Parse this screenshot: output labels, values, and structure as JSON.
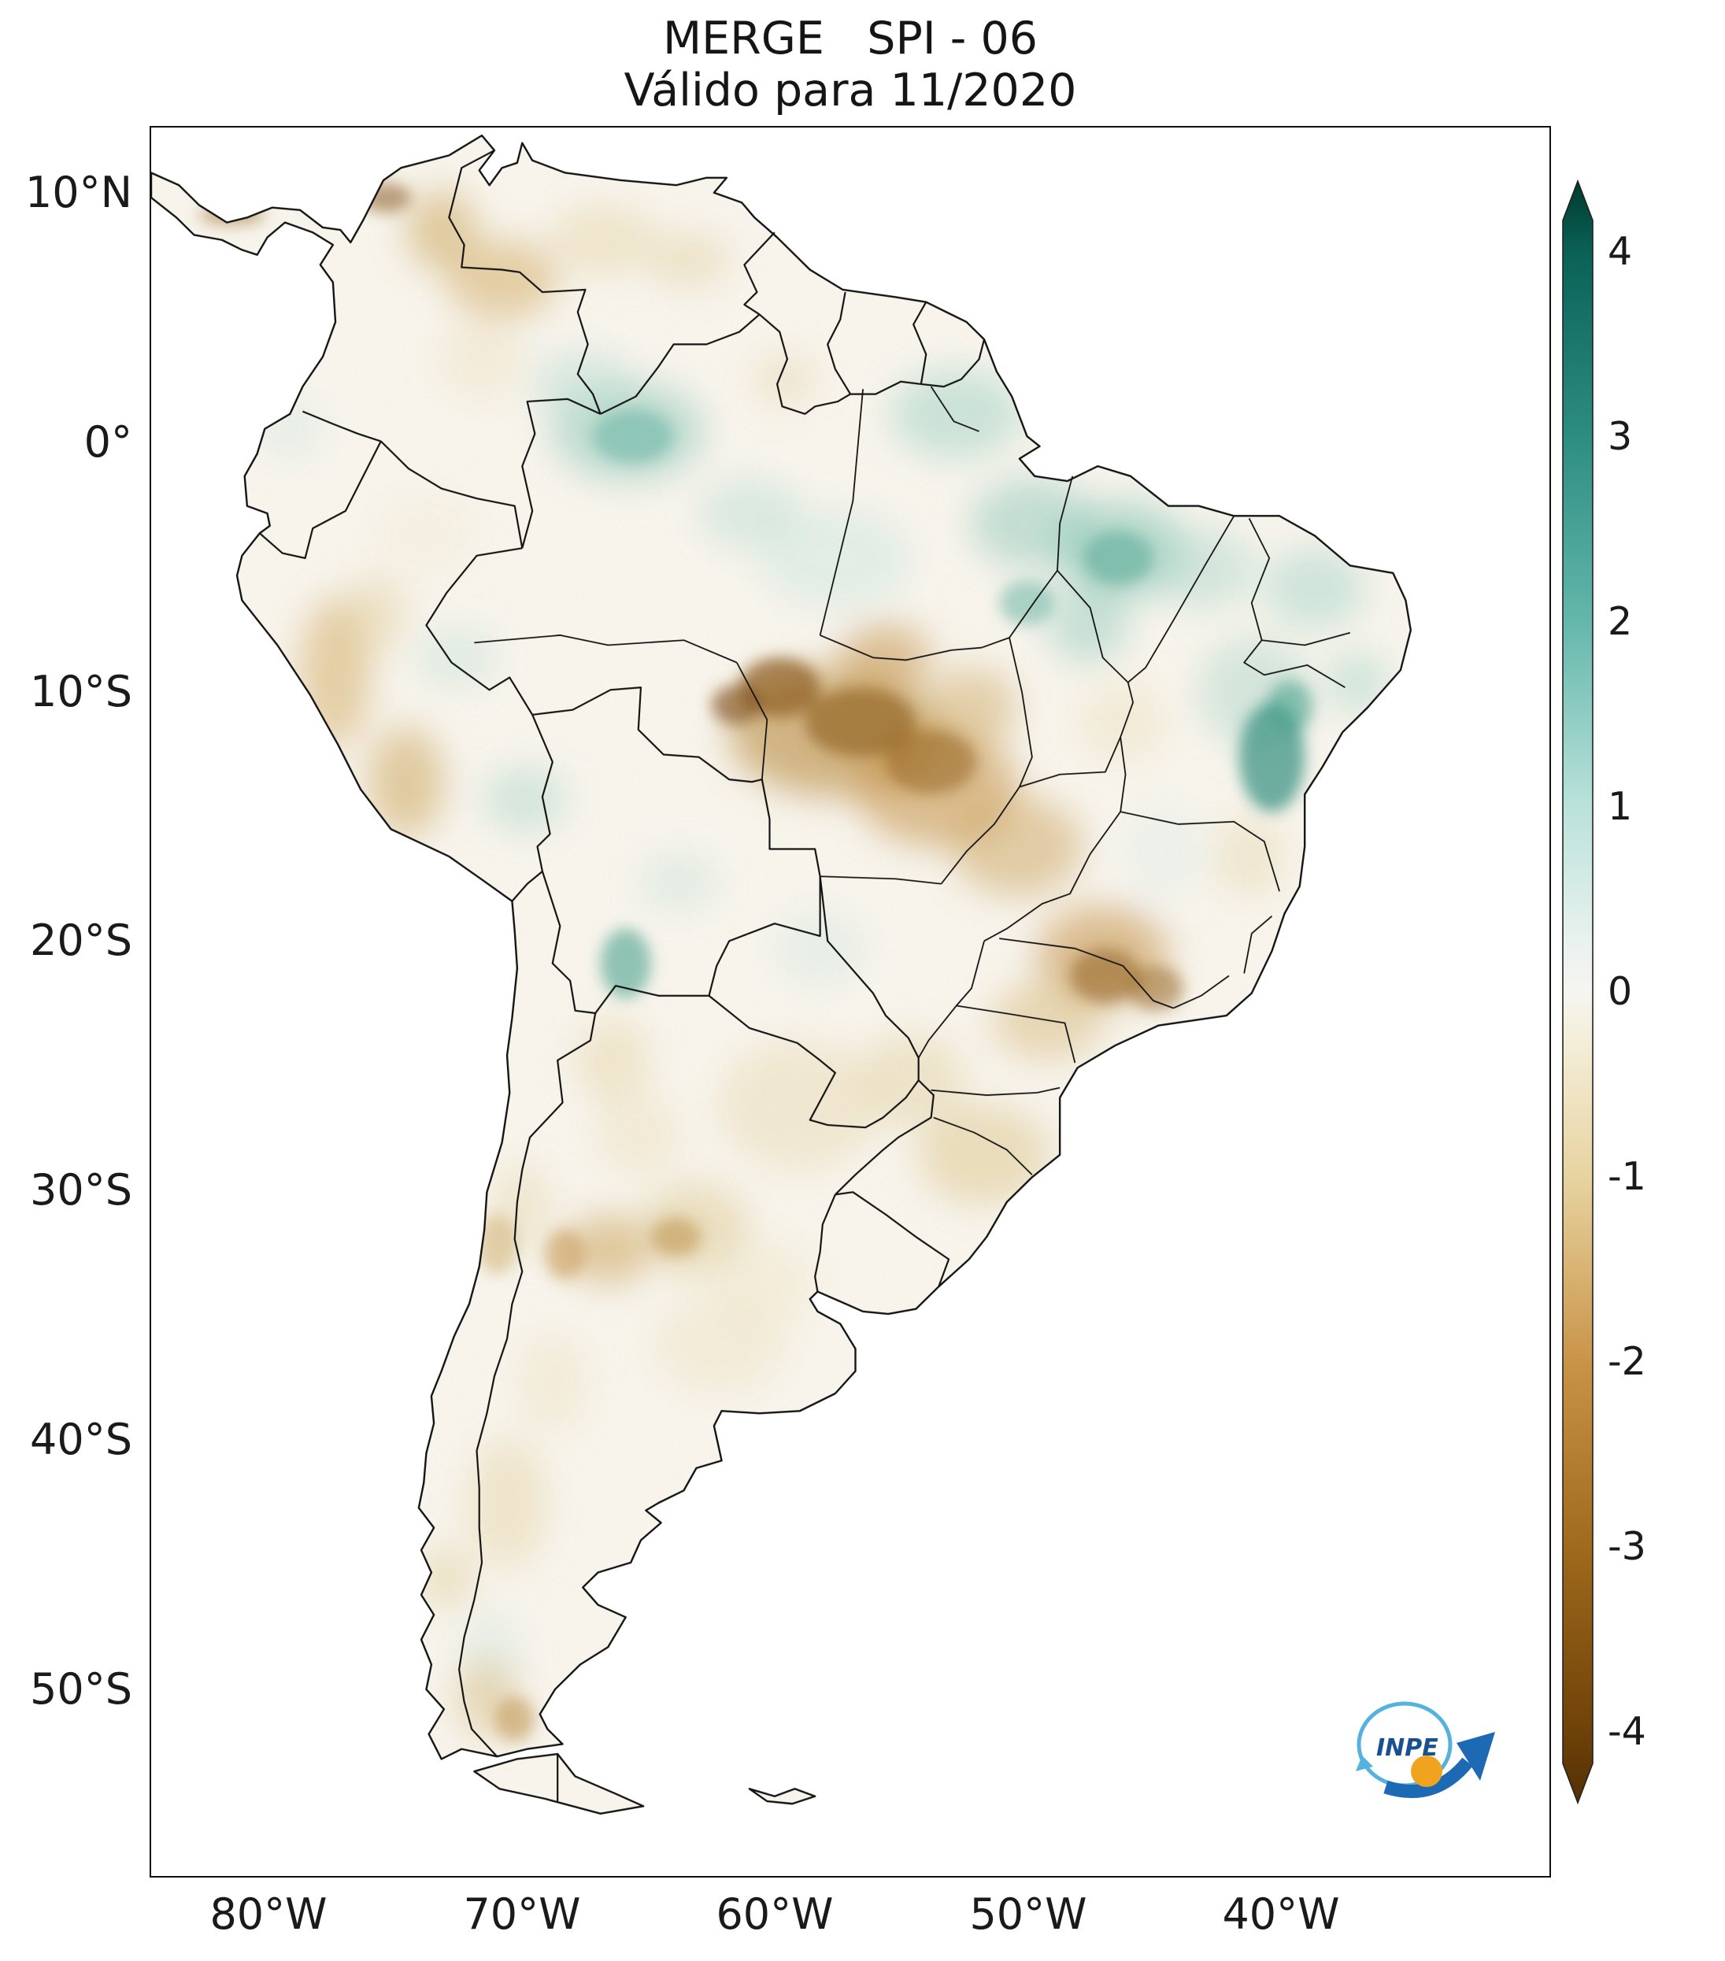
{
  "title": {
    "line1": "MERGE   SPI - 06",
    "line2": "Válido para 11/2020"
  },
  "axes": {
    "y_ticks": [
      {
        "label": "10°N"
      },
      {
        "label": "0°"
      },
      {
        "label": "10°S"
      },
      {
        "label": "20°S"
      },
      {
        "label": "30°S"
      },
      {
        "label": "40°S"
      },
      {
        "label": "50°S"
      }
    ],
    "x_ticks": [
      {
        "label": "80°W"
      },
      {
        "label": "70°W"
      },
      {
        "label": "60°W"
      },
      {
        "label": "50°W"
      },
      {
        "label": "40°W"
      }
    ]
  },
  "colorbar": {
    "ticks": [
      {
        "label": "4"
      },
      {
        "label": "3"
      },
      {
        "label": "2"
      },
      {
        "label": "1"
      },
      {
        "label": "0"
      },
      {
        "label": "-1"
      },
      {
        "label": "-2"
      },
      {
        "label": "-3"
      },
      {
        "label": "-4"
      }
    ],
    "max_color": "#003c30",
    "zero_color": "#f5f5f5",
    "min_color": "#543005"
  },
  "logo": {
    "text": "INPE"
  }
}
